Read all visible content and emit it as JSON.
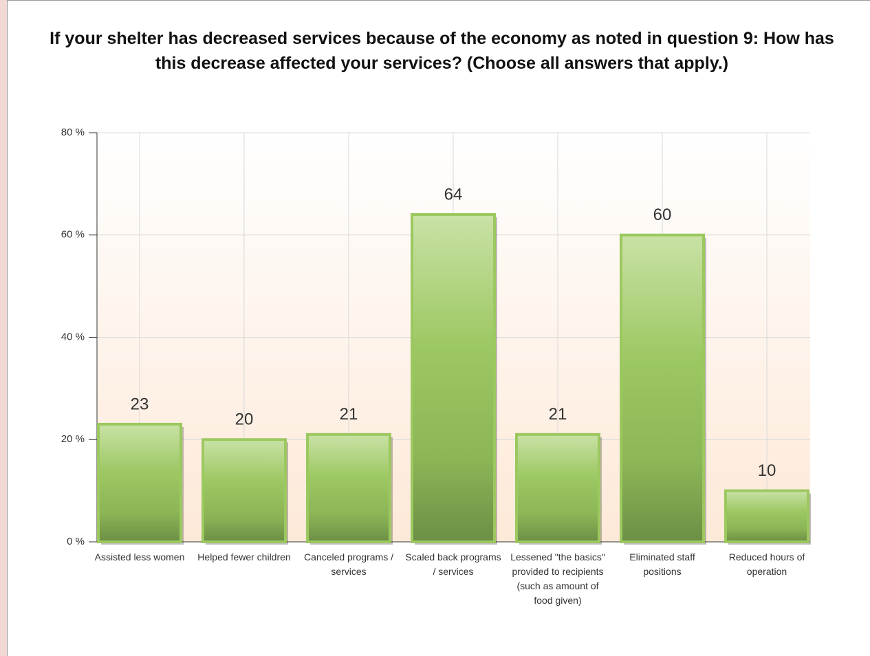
{
  "chart_data": {
    "type": "bar",
    "title": "If your shelter has decreased services because of the economy as noted in question 9: How has this decrease affected your services? (Choose all answers that apply.)",
    "categories": [
      "Assisted less women",
      "Helped fewer children",
      "Canceled programs / services",
      "Scaled back programs / services",
      "Lessened \"the basics\" provided to recipients (such as amount of food given)",
      "Eliminated staff positions",
      "Reduced hours of operation"
    ],
    "values": [
      23,
      20,
      21,
      64,
      21,
      60,
      10
    ],
    "color": "#9cc860",
    "ylim": [
      0,
      80
    ],
    "yticks": [
      {
        "value": 0,
        "label": "0 %"
      },
      {
        "value": 20,
        "label": "20 %"
      },
      {
        "value": 40,
        "label": "40 %"
      },
      {
        "value": 60,
        "label": "60 %"
      },
      {
        "value": 80,
        "label": "80 %"
      }
    ],
    "grid": true
  }
}
